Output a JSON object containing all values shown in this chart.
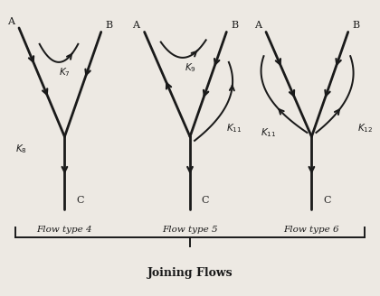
{
  "background_color": "#ede9e3",
  "line_color": "#1a1a1a",
  "text_color": "#1a1a1a",
  "flow_types": [
    "Flow type 4",
    "Flow type 5",
    "Flow type 6"
  ],
  "group_label": "Joining Flows",
  "figsize": [
    4.2,
    3.28
  ],
  "dpi": 100
}
